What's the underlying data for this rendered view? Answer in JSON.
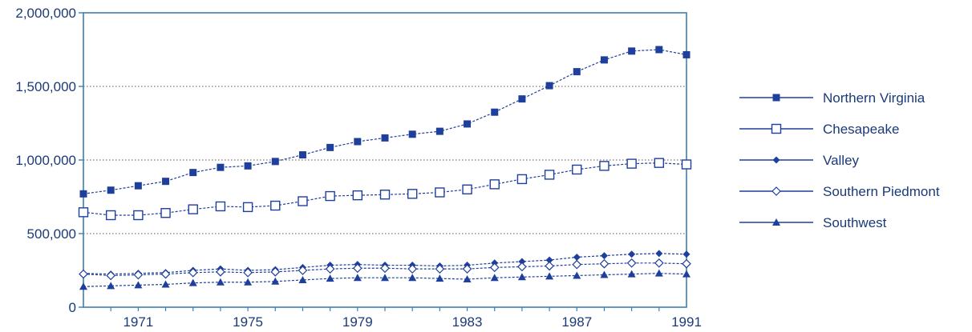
{
  "chart_data": {
    "type": "line",
    "title": "",
    "xlabel": "",
    "ylabel": "",
    "xlim": [
      1969,
      1991
    ],
    "ylim": [
      0,
      2000000
    ],
    "x_ticks": [
      1971,
      1975,
      1979,
      1983,
      1987,
      1991
    ],
    "x_tick_labels": [
      "1971",
      "1975",
      "1979",
      "1983",
      "1987",
      "1991"
    ],
    "y_ticks": [
      0,
      500000,
      1000000,
      1500000,
      2000000
    ],
    "y_tick_labels": [
      "0",
      "500,000",
      "1,000,000",
      "1,500,000",
      "2,000,000"
    ],
    "grid": "horizontal dotted",
    "legend_position": "right",
    "x": [
      1969,
      1970,
      1971,
      1972,
      1973,
      1974,
      1975,
      1976,
      1977,
      1978,
      1979,
      1980,
      1981,
      1982,
      1983,
      1984,
      1985,
      1986,
      1987,
      1988,
      1989,
      1990,
      1991
    ],
    "series": [
      {
        "name": "Northern Virginia",
        "marker": "filled-square",
        "color": "#1f3f9c",
        "values": [
          770000,
          795000,
          825000,
          855000,
          915000,
          950000,
          960000,
          990000,
          1035000,
          1085000,
          1125000,
          1150000,
          1175000,
          1195000,
          1245000,
          1325000,
          1415000,
          1505000,
          1600000,
          1680000,
          1740000,
          1750000,
          1715000
        ]
      },
      {
        "name": "Chesapeake",
        "marker": "open-square",
        "color": "#1f3f9c",
        "values": [
          645000,
          625000,
          625000,
          640000,
          665000,
          685000,
          680000,
          690000,
          720000,
          755000,
          760000,
          765000,
          770000,
          780000,
          800000,
          835000,
          870000,
          900000,
          935000,
          960000,
          975000,
          980000,
          970000
        ]
      },
      {
        "name": "Valley",
        "marker": "filled-diamond",
        "color": "#1f3f9c",
        "values": [
          230000,
          225000,
          230000,
          235000,
          250000,
          260000,
          250000,
          255000,
          270000,
          285000,
          290000,
          285000,
          285000,
          280000,
          285000,
          300000,
          310000,
          320000,
          340000,
          350000,
          360000,
          365000,
          360000
        ]
      },
      {
        "name": "Southern Piedmont",
        "marker": "open-diamond",
        "color": "#1f3f9c",
        "values": [
          225000,
          215000,
          220000,
          225000,
          235000,
          240000,
          235000,
          240000,
          250000,
          260000,
          265000,
          265000,
          260000,
          260000,
          260000,
          270000,
          275000,
          280000,
          290000,
          295000,
          300000,
          300000,
          295000
        ]
      },
      {
        "name": "Southwest",
        "marker": "filled-triangle",
        "color": "#1f3f9c",
        "values": [
          140000,
          145000,
          150000,
          155000,
          165000,
          170000,
          170000,
          175000,
          185000,
          195000,
          200000,
          200000,
          200000,
          195000,
          190000,
          200000,
          205000,
          210000,
          215000,
          220000,
          225000,
          230000,
          225000
        ]
      }
    ]
  }
}
